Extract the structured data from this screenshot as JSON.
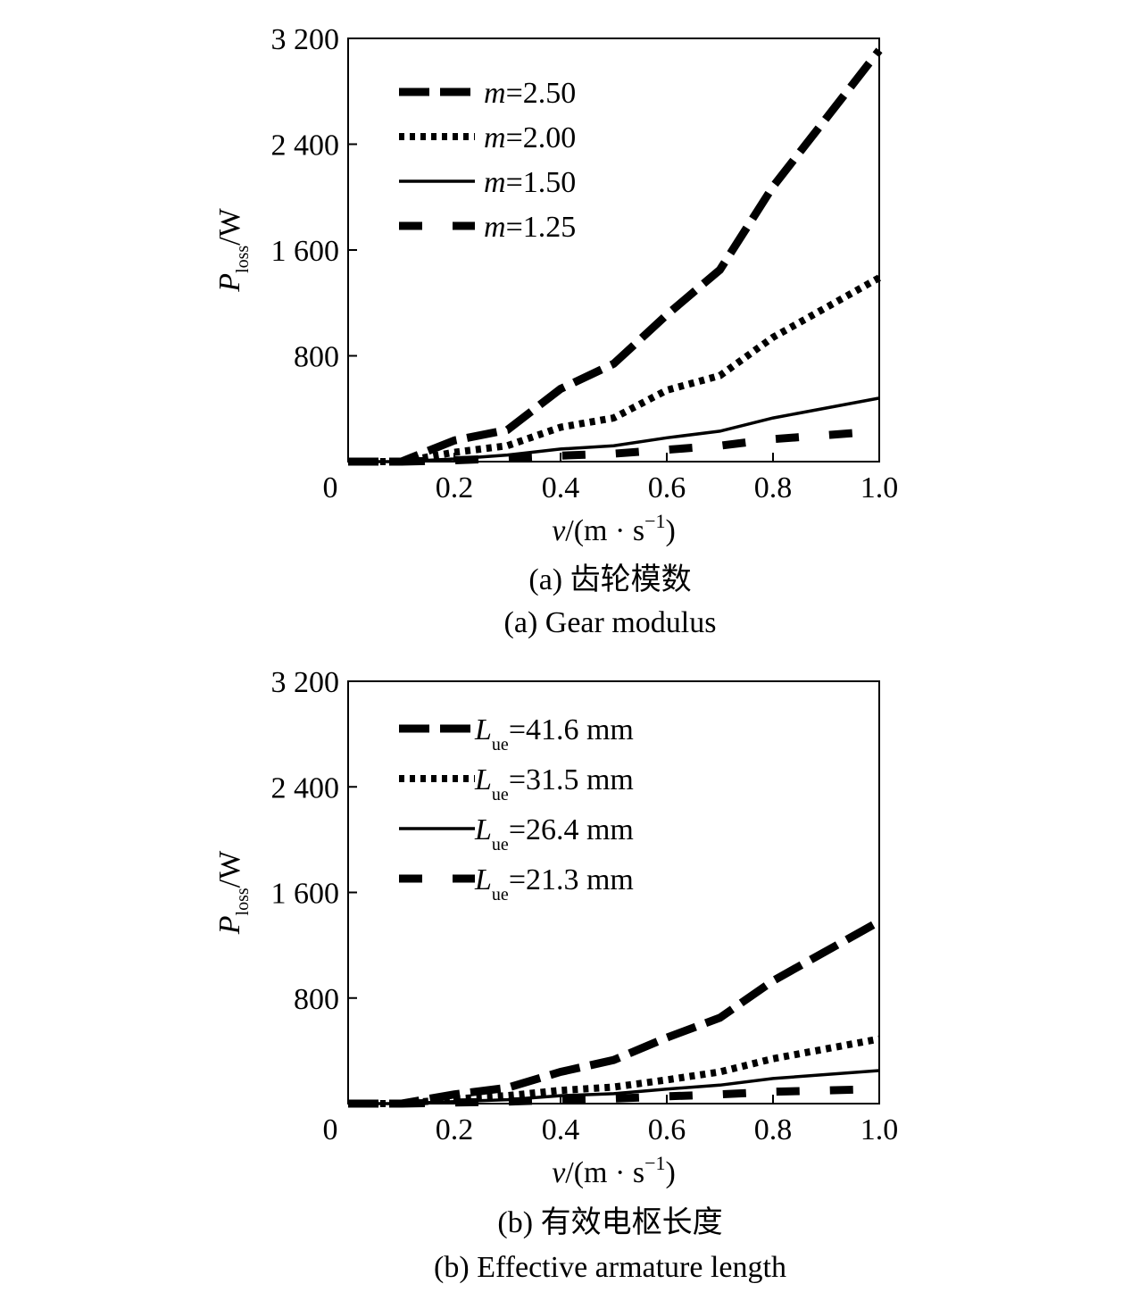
{
  "chart_data": [
    {
      "type": "line",
      "title": "",
      "caption_cn": "(a) 齿轮模数",
      "caption_en": "(a) Gear modulus",
      "xlabel": {
        "var": "v",
        "unit_open": "/(m · s",
        "unit_sup": "−1",
        "unit_close": ")"
      },
      "ylabel": {
        "var": "P",
        "sub": "loss",
        "unit": "/W"
      },
      "xlim": [
        0,
        1.0
      ],
      "ylim": [
        0,
        3200
      ],
      "x_ticks": [
        0.2,
        0.4,
        0.6,
        0.8,
        1.0
      ],
      "x_tick_labels": [
        "0.2",
        "0.4",
        "0.6",
        "0.8",
        "1.0"
      ],
      "y_ticks": [
        800,
        1600,
        2400,
        3200
      ],
      "y_tick_labels": [
        "800",
        "1 600",
        "2 400",
        "3 200"
      ],
      "origin_label": "0",
      "legend_position": "top-left",
      "x": [
        0,
        0.1,
        0.2,
        0.3,
        0.4,
        0.5,
        0.6,
        0.7,
        0.8,
        1.0
      ],
      "series": [
        {
          "var": "m",
          "label": "=2.50",
          "style": "long-dash",
          "values": [
            0,
            0,
            160,
            240,
            550,
            740,
            1110,
            1450,
            2080,
            3110
          ]
        },
        {
          "var": "m",
          "label": "=2.00",
          "style": "dot",
          "values": [
            0,
            0,
            70,
            120,
            260,
            330,
            540,
            650,
            940,
            1390
          ]
        },
        {
          "var": "m",
          "label": "=1.50",
          "style": "solid",
          "values": [
            0,
            0,
            20,
            50,
            95,
            120,
            180,
            230,
            330,
            480
          ]
        },
        {
          "var": "m",
          "label": "=1.25",
          "style": "wide-dash",
          "values": [
            0,
            0,
            10,
            25,
            45,
            60,
            90,
            120,
            170,
            230
          ]
        }
      ]
    },
    {
      "type": "line",
      "title": "",
      "caption_cn": "(b) 有效电枢长度",
      "caption_en": "(b) Effective armature length",
      "xlabel": {
        "var": "v",
        "unit_open": "/(m · s",
        "unit_sup": "−1",
        "unit_close": ")"
      },
      "ylabel": {
        "var": "P",
        "sub": "loss",
        "unit": "/W"
      },
      "xlim": [
        0,
        1.0
      ],
      "ylim": [
        0,
        3200
      ],
      "x_ticks": [
        0.2,
        0.4,
        0.6,
        0.8,
        1.0
      ],
      "x_tick_labels": [
        "0.2",
        "0.4",
        "0.6",
        "0.8",
        "1.0"
      ],
      "y_ticks": [
        800,
        1600,
        2400,
        3200
      ],
      "y_tick_labels": [
        "800",
        "1 600",
        "2 400",
        "3 200"
      ],
      "origin_label": "0",
      "legend_position": "top-left",
      "x": [
        0,
        0.1,
        0.2,
        0.3,
        0.4,
        0.5,
        0.6,
        0.7,
        0.8,
        1.0
      ],
      "series": [
        {
          "var": "L",
          "sub": "ue",
          "label": "=41.6 mm",
          "style": "long-dash",
          "values": [
            0,
            0,
            70,
            120,
            240,
            330,
            500,
            650,
            930,
            1380
          ]
        },
        {
          "var": "L",
          "sub": "ue",
          "label": "=31.5 mm",
          "style": "dot",
          "values": [
            0,
            0,
            35,
            60,
            100,
            125,
            180,
            240,
            340,
            490
          ]
        },
        {
          "var": "L",
          "sub": "ue",
          "label": "=26.4 mm",
          "style": "solid",
          "values": [
            0,
            0,
            15,
            30,
            60,
            75,
            110,
            140,
            190,
            250
          ]
        },
        {
          "var": "L",
          "sub": "ue",
          "label": "=21.3 mm",
          "style": "wide-dash",
          "values": [
            0,
            0,
            8,
            15,
            28,
            38,
            55,
            70,
            90,
            110
          ]
        }
      ]
    }
  ]
}
